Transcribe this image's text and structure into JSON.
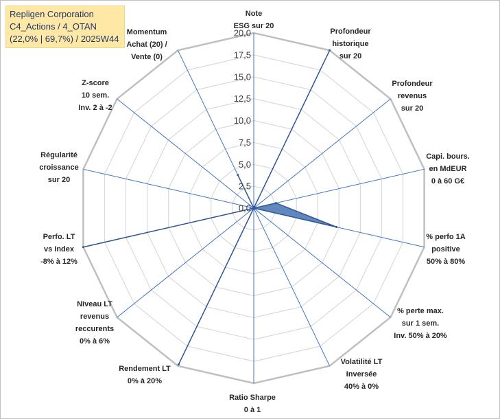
{
  "header": {
    "company": "Repligen Corporation",
    "portfolio": "C4_Actions / 4_OTAN",
    "stats": "(22,0% | 69,7%) / 2025W44"
  },
  "chart_data": {
    "type": "radar",
    "scale": {
      "min": 0,
      "max": 20,
      "step": 2.5
    },
    "tick_labels": [
      "0,0",
      "2,5",
      "5,0",
      "7,5",
      "10,0",
      "12,5",
      "15,0",
      "17,5",
      "20,0"
    ],
    "axes": [
      {
        "label_lines": [
          "Note",
          "ESG sur 20"
        ],
        "value": 0
      },
      {
        "label_lines": [
          "Profondeur",
          "historique",
          "sur 20"
        ],
        "value": 20
      },
      {
        "label_lines": [
          "Profondeur",
          "revenus",
          "sur 20"
        ],
        "value": 0
      },
      {
        "label_lines": [
          "Capi. bours.",
          "en MdEUR",
          "0 à 60 G€"
        ],
        "value": 2.6
      },
      {
        "label_lines": [
          "% perfo 1A",
          "positive",
          "50% à 80%"
        ],
        "value": 9.7
      },
      {
        "label_lines": [
          "% perte max.",
          "sur 1 sem.",
          "Inv. 50% à 20%"
        ],
        "value": 0
      },
      {
        "label_lines": [
          "Volatilité LT",
          "Inversée",
          "40% à 0%"
        ],
        "value": 0
      },
      {
        "label_lines": [
          "Ratio Sharpe",
          "0 à 1"
        ],
        "value": 0
      },
      {
        "label_lines": [
          "Rendement LT",
          "0% à 20%"
        ],
        "value": 19.8
      },
      {
        "label_lines": [
          "Niveau LT",
          "revenus",
          "reccurents",
          "0% à 6%"
        ],
        "value": 0
      },
      {
        "label_lines": [
          "Perfo. LT",
          "vs Index",
          "-8% à 12%"
        ],
        "value": 20
      },
      {
        "label_lines": [
          "Régularité",
          "croissance",
          "sur 20"
        ],
        "value": 0
      },
      {
        "label_lines": [
          "Z-score",
          "10 sem.",
          "Inv. 2 à -2"
        ],
        "value": 0
      },
      {
        "label_lines": [
          "Momentum",
          "Achat (20) /",
          "Vente (0)"
        ],
        "value": 4.2
      }
    ],
    "colors": {
      "fill": "#4a77b4",
      "line": "#2f5597",
      "grid": "#d9d9d9",
      "spoke": "#4472c4"
    }
  }
}
